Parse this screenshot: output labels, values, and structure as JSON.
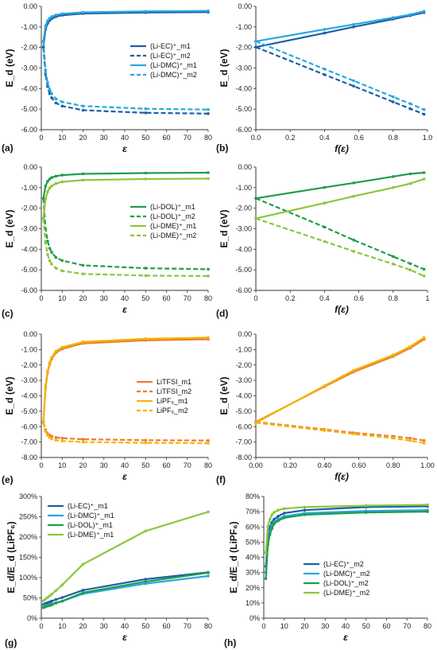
{
  "chart_data": [
    {
      "id": "a",
      "type": "line",
      "panel_label": "(a)",
      "xlabel": "ε",
      "ylabel": "E_d (eV)",
      "xlim": [
        0,
        80
      ],
      "ylim": [
        -6,
        0
      ],
      "xticks": [
        "0",
        "10",
        "20",
        "30",
        "40",
        "50",
        "60",
        "70",
        "80"
      ],
      "yticks": [
        "0.00",
        "-1.00",
        "-2.00",
        "-3.00",
        "-4.00",
        "-5.00",
        "-6.00"
      ],
      "x": [
        1,
        2,
        3,
        4,
        5,
        7,
        10,
        20,
        50,
        80
      ],
      "legend_position": "right",
      "series": [
        {
          "name": "(Li-EC)⁺_m1",
          "color": "#1f5fa6",
          "dash": false,
          "values": [
            -1.98,
            -1.12,
            -0.83,
            -0.69,
            -0.6,
            -0.5,
            -0.43,
            -0.35,
            -0.3,
            -0.28
          ]
        },
        {
          "name": "(Li-EC)⁺_m2",
          "color": "#1f5fa6",
          "dash": true,
          "values": [
            -1.98,
            -3.3,
            -3.9,
            -4.25,
            -4.45,
            -4.7,
            -4.85,
            -5.05,
            -5.18,
            -5.22
          ]
        },
        {
          "name": "(Li-DMC)⁺_m1",
          "color": "#29a8df",
          "dash": false,
          "values": [
            -1.7,
            -0.95,
            -0.7,
            -0.58,
            -0.5,
            -0.42,
            -0.36,
            -0.29,
            -0.24,
            -0.22
          ]
        },
        {
          "name": "(Li-DMC)⁺_m2",
          "color": "#29a8df",
          "dash": true,
          "values": [
            -1.7,
            -3.1,
            -3.7,
            -4.05,
            -4.25,
            -4.5,
            -4.65,
            -4.85,
            -4.98,
            -5.02
          ]
        }
      ]
    },
    {
      "id": "b",
      "type": "line",
      "panel_label": "(b)",
      "xlabel": "f(ε)",
      "ylabel": "E_d (eV)",
      "xlim": [
        0,
        1
      ],
      "ylim": [
        -6,
        0
      ],
      "xticks": [
        "0.0",
        "0.2",
        "0.4",
        "0.6",
        "0.8",
        "1.0"
      ],
      "yticks": [
        "0.00",
        "-1.00",
        "-2.00",
        "-3.00",
        "-4.00",
        "-5.00",
        "-6.00"
      ],
      "x": [
        0,
        0.4,
        0.57,
        0.8,
        0.9,
        0.98
      ],
      "series": [
        {
          "name": "(Li-EC)⁺_m1",
          "color": "#1f5fa6",
          "dash": false,
          "values": [
            -1.98,
            -1.3,
            -1.0,
            -0.62,
            -0.45,
            -0.3
          ]
        },
        {
          "name": "(Li-EC)⁺_m2",
          "color": "#1f5fa6",
          "dash": true,
          "values": [
            -1.98,
            -3.32,
            -3.88,
            -4.65,
            -4.98,
            -5.25
          ]
        },
        {
          "name": "(Li-DMC)⁺_m1",
          "color": "#29a8df",
          "dash": false,
          "values": [
            -1.7,
            -1.12,
            -0.88,
            -0.55,
            -0.4,
            -0.24
          ]
        },
        {
          "name": "(Li-DMC)⁺_m2",
          "color": "#29a8df",
          "dash": true,
          "values": [
            -1.7,
            -3.05,
            -3.62,
            -4.4,
            -4.74,
            -5.02
          ]
        }
      ]
    },
    {
      "id": "c",
      "type": "line",
      "panel_label": "(c)",
      "xlabel": "ε",
      "ylabel": "E_d (eV)",
      "xlim": [
        0,
        80
      ],
      "ylim": [
        -6,
        0
      ],
      "xticks": [
        "0",
        "10",
        "20",
        "30",
        "40",
        "50",
        "60",
        "70",
        "80"
      ],
      "yticks": [
        "0.00",
        "-1.00",
        "-2.00",
        "-3.00",
        "-4.00",
        "-5.00",
        "-6.00"
      ],
      "x": [
        1,
        2,
        3,
        4,
        5,
        7,
        10,
        20,
        50,
        80
      ],
      "legend_position": "right",
      "series": [
        {
          "name": "(Li-DOL)⁺_m1",
          "color": "#1e9e4a",
          "dash": false,
          "values": [
            -1.52,
            -0.92,
            -0.7,
            -0.58,
            -0.51,
            -0.44,
            -0.39,
            -0.33,
            -0.29,
            -0.27
          ]
        },
        {
          "name": "(Li-DOL)⁺_m2",
          "color": "#1e9e4a",
          "dash": true,
          "values": [
            -1.52,
            -3.0,
            -3.6,
            -3.95,
            -4.15,
            -4.4,
            -4.55,
            -4.78,
            -4.92,
            -4.97
          ]
        },
        {
          "name": "(Li-DME)⁺_m1",
          "color": "#8cc63f",
          "dash": false,
          "values": [
            -2.5,
            -1.55,
            -1.2,
            -1.02,
            -0.92,
            -0.8,
            -0.72,
            -0.63,
            -0.58,
            -0.56
          ]
        },
        {
          "name": "(Li-DME)⁺_m2",
          "color": "#8cc63f",
          "dash": true,
          "values": [
            -2.5,
            -3.7,
            -4.25,
            -4.55,
            -4.72,
            -4.92,
            -5.05,
            -5.2,
            -5.28,
            -5.3
          ]
        }
      ]
    },
    {
      "id": "d",
      "type": "line",
      "panel_label": "(d)",
      "xlabel": "f(ε)",
      "ylabel": "E_d (eV)",
      "xlim": [
        0,
        1
      ],
      "ylim": [
        -6,
        0
      ],
      "xticks": [
        "0",
        "0.2",
        "0.4",
        "0.6",
        "0.8",
        "1"
      ],
      "yticks": [
        "0.00",
        "-1.00",
        "-2.00",
        "-3.00",
        "-4.00",
        "-5.00",
        "-6.00"
      ],
      "x": [
        0,
        0.4,
        0.57,
        0.8,
        0.9,
        0.98
      ],
      "series": [
        {
          "name": "(Li-DOL)⁺_m1",
          "color": "#1e9e4a",
          "dash": false,
          "values": [
            -1.52,
            -0.99,
            -0.77,
            -0.46,
            -0.33,
            -0.27
          ]
        },
        {
          "name": "(Li-DOL)⁺_m2",
          "color": "#1e9e4a",
          "dash": true,
          "values": [
            -1.52,
            -2.92,
            -3.55,
            -4.35,
            -4.7,
            -4.97
          ]
        },
        {
          "name": "(Li-DME)⁺_m1",
          "color": "#8cc63f",
          "dash": false,
          "values": [
            -2.5,
            -1.75,
            -1.42,
            -1.0,
            -0.8,
            -0.58
          ]
        },
        {
          "name": "(Li-DME)⁺_m2",
          "color": "#8cc63f",
          "dash": true,
          "values": [
            -2.5,
            -3.62,
            -4.1,
            -4.72,
            -5.0,
            -5.3
          ]
        }
      ]
    },
    {
      "id": "e",
      "type": "line",
      "panel_label": "(e)",
      "xlabel": "ε",
      "ylabel": "E_d (eV)",
      "xlim": [
        0,
        80
      ],
      "ylim": [
        -8,
        0
      ],
      "xticks": [
        "0",
        "10",
        "20",
        "30",
        "40",
        "50",
        "60",
        "70",
        "80"
      ],
      "yticks": [
        "0.00",
        "-1.00",
        "-2.00",
        "-3.00",
        "-4.00",
        "-5.00",
        "-6.00",
        "-7.00",
        "-8.00"
      ],
      "x": [
        1,
        2,
        3,
        4,
        5,
        7,
        10,
        20,
        50,
        80
      ],
      "legend_position": "right",
      "series": [
        {
          "name": "LiTFSI_m1",
          "color": "#ed7d31",
          "dash": false,
          "values": [
            -5.7,
            -3.5,
            -2.5,
            -1.95,
            -1.6,
            -1.2,
            -0.95,
            -0.6,
            -0.4,
            -0.33
          ]
        },
        {
          "name": "LiTFSI_m2",
          "color": "#ed7d31",
          "dash": true,
          "values": [
            -5.7,
            -6.2,
            -6.45,
            -6.55,
            -6.62,
            -6.7,
            -6.75,
            -6.82,
            -6.88,
            -6.9
          ]
        },
        {
          "name": "LiPF₆_m1",
          "color": "#f4b400",
          "dash": false,
          "values": [
            -5.75,
            -3.35,
            -2.4,
            -1.85,
            -1.5,
            -1.1,
            -0.85,
            -0.5,
            -0.3,
            -0.22
          ]
        },
        {
          "name": "LiPF₆_m2",
          "color": "#f4b400",
          "dash": true,
          "values": [
            -5.75,
            -6.3,
            -6.55,
            -6.7,
            -6.78,
            -6.88,
            -6.93,
            -7.0,
            -7.05,
            -7.07
          ]
        }
      ]
    },
    {
      "id": "f",
      "type": "line",
      "panel_label": "(f)",
      "xlabel": "f(ε)",
      "ylabel": "E_d (eV)",
      "xlim": [
        0,
        1
      ],
      "ylim": [
        -8,
        0
      ],
      "xticks": [
        "0.00",
        "0.20",
        "0.40",
        "0.60",
        "0.80",
        "1.00"
      ],
      "yticks": [
        "0.00",
        "-1.00",
        "-2.00",
        "-3.00",
        "-4.00",
        "-5.00",
        "-6.00",
        "-7.00",
        "-8.00"
      ],
      "x": [
        0,
        0.4,
        0.57,
        0.8,
        0.9,
        0.98
      ],
      "series": [
        {
          "name": "LiTFSI_m1",
          "color": "#ed7d31",
          "dash": false,
          "values": [
            -5.7,
            -3.4,
            -2.45,
            -1.45,
            -0.9,
            -0.33
          ]
        },
        {
          "name": "LiTFSI_m2",
          "color": "#ed7d31",
          "dash": true,
          "values": [
            -5.7,
            -6.18,
            -6.4,
            -6.62,
            -6.75,
            -6.9
          ]
        },
        {
          "name": "LiPF₆_m1",
          "color": "#f4b400",
          "dash": false,
          "values": [
            -5.75,
            -3.35,
            -2.35,
            -1.35,
            -0.8,
            -0.22
          ]
        },
        {
          "name": "LiPF₆_m2",
          "color": "#f4b400",
          "dash": true,
          "values": [
            -5.75,
            -6.25,
            -6.48,
            -6.75,
            -6.9,
            -7.07
          ]
        }
      ]
    },
    {
      "id": "g",
      "type": "line",
      "panel_label": "(g)",
      "xlabel": "ε",
      "ylabel": "E_d/E_d (LiPF₆)",
      "xlim": [
        0,
        80
      ],
      "ylim": [
        0,
        300
      ],
      "xticks": [
        "0",
        "10",
        "20",
        "30",
        "40",
        "50",
        "60",
        "70",
        "80"
      ],
      "yticks": [
        "0%",
        "50%",
        "100%",
        "150%",
        "200%",
        "250%",
        "300%"
      ],
      "x": [
        1,
        2,
        3,
        4,
        5,
        7,
        10,
        20,
        50,
        80
      ],
      "legend_position": "top-left",
      "series": [
        {
          "name": "(Li-EC)⁺_m1",
          "color": "#1f5fa6",
          "dash": false,
          "values": [
            34,
            36,
            38,
            40,
            42,
            46,
            51,
            69,
            96,
            113
          ]
        },
        {
          "name": "(Li-DMC)⁺_m1",
          "color": "#29a8df",
          "dash": false,
          "values": [
            30,
            31,
            32,
            33,
            35,
            38,
            42,
            60,
            85,
            104
          ]
        },
        {
          "name": "(Li-DOL)⁺_m1",
          "color": "#1e9e4a",
          "dash": false,
          "values": [
            26,
            28,
            30,
            31,
            33,
            37,
            42,
            63,
            90,
            112
          ]
        },
        {
          "name": "(Li-DME)⁺_m1",
          "color": "#8cc63f",
          "dash": false,
          "values": [
            43,
            47,
            51,
            55,
            59,
            68,
            82,
            133,
            215,
            262
          ]
        }
      ]
    },
    {
      "id": "h",
      "type": "line",
      "panel_label": "(h)",
      "xlabel": "ε",
      "ylabel": "E_d/E_d (LiPF₆)",
      "xlim": [
        0,
        80
      ],
      "ylim": [
        0,
        80
      ],
      "xticks": [
        "0",
        "10",
        "20",
        "30",
        "40",
        "50",
        "60",
        "70",
        "80"
      ],
      "yticks": [
        "0%",
        "10%",
        "20%",
        "30%",
        "40%",
        "50%",
        "60%",
        "70%",
        "80%"
      ],
      "x": [
        1,
        2,
        3,
        4,
        5,
        7,
        10,
        20,
        50,
        80
      ],
      "legend_position": "right",
      "series": [
        {
          "name": "(Li-EC)⁺_m2",
          "color": "#1f5fa6",
          "dash": false,
          "values": [
            34,
            52,
            60,
            63,
            65,
            67,
            69,
            71,
            73,
            73.5
          ]
        },
        {
          "name": "(Li-DMC)⁺_m2",
          "color": "#29a8df",
          "dash": false,
          "values": [
            30,
            49,
            57,
            61,
            63,
            65,
            67,
            69,
            70.5,
            71
          ]
        },
        {
          "name": "(Li-DOL)⁺_m2",
          "color": "#1e9e4a",
          "dash": false,
          "values": [
            26,
            48,
            55,
            59,
            62,
            64,
            66,
            68,
            69.5,
            70
          ]
        },
        {
          "name": "(Li-DME)⁺_m2",
          "color": "#8cc63f",
          "dash": false,
          "values": [
            43,
            60,
            65,
            68,
            69.5,
            71,
            72,
            73,
            74,
            74.5
          ]
        }
      ]
    }
  ]
}
